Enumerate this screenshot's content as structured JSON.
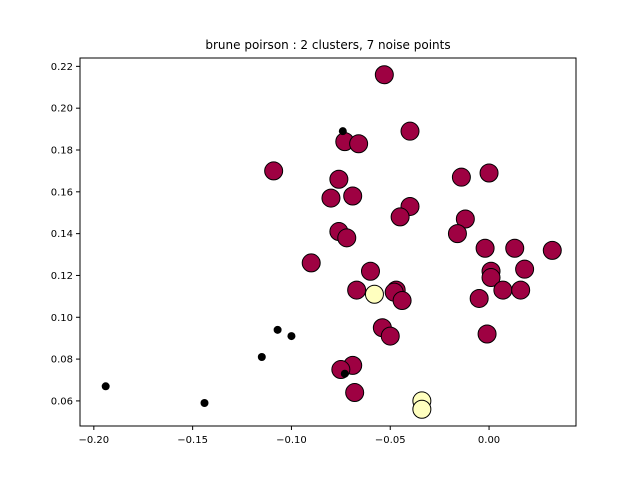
{
  "chart_data": {
    "type": "scatter",
    "title": "brune poirson : 2 clusters, 7 noise points",
    "xlabel": "",
    "ylabel": "",
    "xlim": [
      -0.207,
      0.044
    ],
    "ylim": [
      0.048,
      0.224
    ],
    "xticks": [
      -0.2,
      -0.15,
      -0.1,
      -0.05,
      0.0
    ],
    "xtick_labels": [
      "−0.20",
      "−0.15",
      "−0.10",
      "−0.05",
      "0.00"
    ],
    "yticks": [
      0.06,
      0.08,
      0.1,
      0.12,
      0.14,
      0.16,
      0.18,
      0.2,
      0.22
    ],
    "ytick_labels": [
      "0.06",
      "0.08",
      "0.10",
      "0.12",
      "0.14",
      "0.16",
      "0.18",
      "0.20",
      "0.22"
    ],
    "grid": false,
    "colors": {
      "cluster_0": "#9e0142",
      "cluster_1": "#ffffbf",
      "noise": "#000000",
      "edge": "#000000"
    },
    "series": [
      {
        "cluster": 0,
        "marker": "large",
        "points": [
          [
            -0.053,
            0.216
          ],
          [
            -0.04,
            0.189
          ],
          [
            -0.073,
            0.184
          ],
          [
            -0.066,
            0.183
          ],
          [
            -0.109,
            0.17
          ],
          [
            -0.014,
            0.167
          ],
          [
            0.0,
            0.169
          ],
          [
            -0.076,
            0.166
          ],
          [
            -0.08,
            0.157
          ],
          [
            -0.069,
            0.158
          ],
          [
            -0.04,
            0.153
          ],
          [
            -0.045,
            0.148
          ],
          [
            -0.012,
            0.147
          ],
          [
            -0.016,
            0.14
          ],
          [
            -0.076,
            0.141
          ],
          [
            -0.072,
            0.138
          ],
          [
            -0.002,
            0.133
          ],
          [
            0.013,
            0.133
          ],
          [
            0.032,
            0.132
          ],
          [
            -0.09,
            0.126
          ],
          [
            0.001,
            0.122
          ],
          [
            0.018,
            0.123
          ],
          [
            -0.06,
            0.122
          ],
          [
            0.001,
            0.119
          ],
          [
            -0.067,
            0.113
          ],
          [
            -0.047,
            0.113
          ],
          [
            -0.048,
            0.112
          ],
          [
            0.007,
            0.113
          ],
          [
            0.016,
            0.113
          ],
          [
            -0.044,
            0.108
          ],
          [
            -0.005,
            0.109
          ],
          [
            -0.054,
            0.095
          ],
          [
            -0.05,
            0.091
          ],
          [
            -0.001,
            0.092
          ],
          [
            -0.069,
            0.077
          ],
          [
            -0.075,
            0.075
          ],
          [
            -0.068,
            0.064
          ]
        ]
      },
      {
        "cluster": 1,
        "marker": "large",
        "points": [
          [
            -0.058,
            0.111
          ],
          [
            -0.034,
            0.06
          ],
          [
            -0.034,
            0.056
          ]
        ]
      },
      {
        "cluster": -1,
        "marker": "small",
        "points": [
          [
            -0.074,
            0.189
          ],
          [
            -0.107,
            0.094
          ],
          [
            -0.1,
            0.091
          ],
          [
            -0.115,
            0.081
          ],
          [
            -0.073,
            0.073
          ],
          [
            -0.194,
            0.067
          ],
          [
            -0.144,
            0.059
          ]
        ]
      }
    ]
  }
}
